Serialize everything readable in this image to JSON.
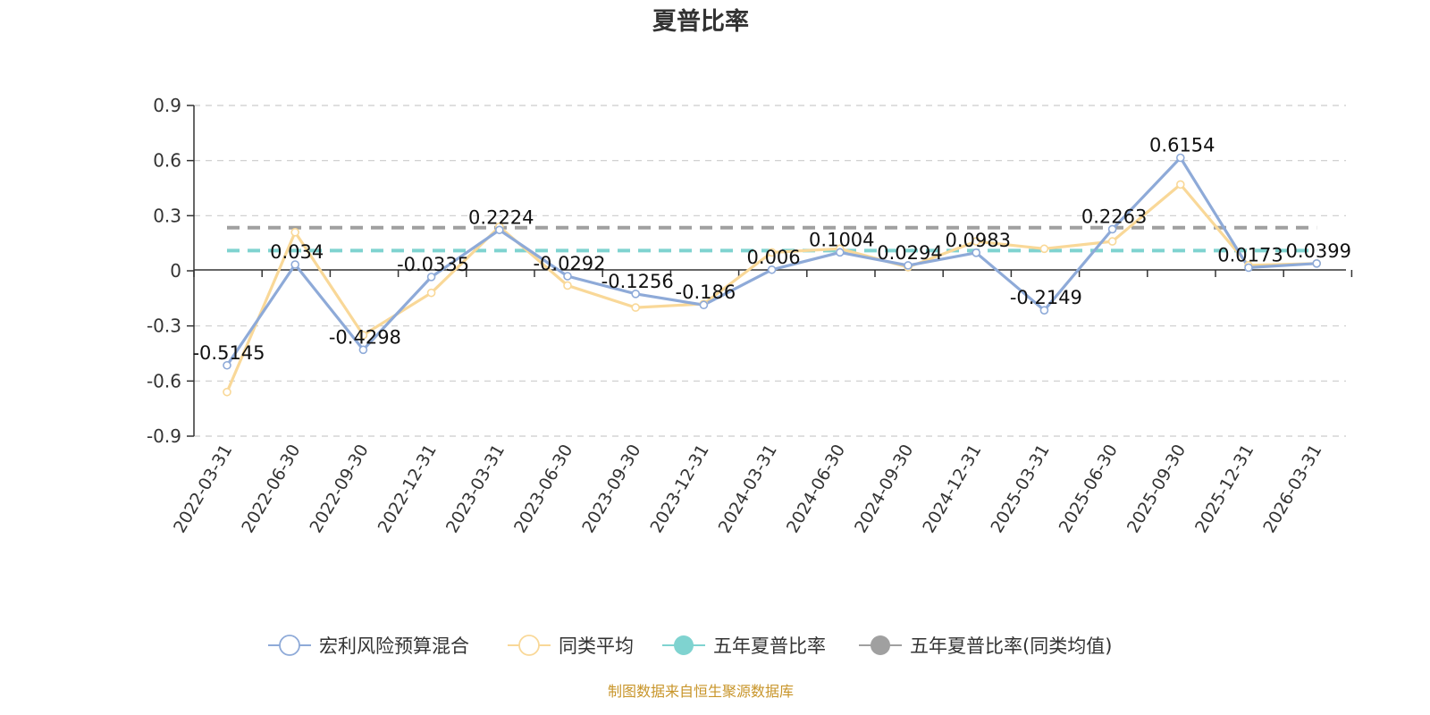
{
  "chart_data": {
    "type": "line",
    "title": "夏普比率",
    "xlabel": "",
    "ylabel": "",
    "ylim": [
      -0.9,
      0.9
    ],
    "yticks": [
      0.9,
      0.6,
      0.3,
      0,
      -0.3,
      -0.6,
      -0.9
    ],
    "grid": true,
    "legend_position": "bottom",
    "categories": [
      "2022-03-31",
      "2022-06-30",
      "2022-09-30",
      "2022-12-31",
      "2023-03-31",
      "2023-06-30",
      "2023-09-30",
      "2023-12-31",
      "2024-03-31",
      "2024-06-30",
      "2024-09-30",
      "2024-12-31",
      "2025-03-31",
      "2025-06-30",
      "2025-09-30",
      "2025-12-31",
      "2026-03-31"
    ],
    "series": [
      {
        "name": "宏利风险预算混合",
        "color": "#8eaad8",
        "values": [
          -0.5145,
          0.034,
          -0.4298,
          -0.0335,
          0.2224,
          -0.0292,
          -0.1256,
          -0.186,
          0.006,
          0.1004,
          0.0294,
          0.0983,
          -0.2149,
          0.2263,
          0.6154,
          0.0173,
          0.0399
        ],
        "labels": [
          "-0.5145",
          "0.034",
          "-0.4298",
          "-0.0335",
          "0.2224",
          "-0.0292",
          "-0.1256",
          "-0.186",
          "0.006",
          "0.1004",
          "0.0294",
          "0.0983",
          "-0.2149",
          "0.2263",
          "0.6154",
          "0.0173",
          "0.0399"
        ]
      },
      {
        "name": "同类平均",
        "color": "#f9d898",
        "values": [
          -0.66,
          0.21,
          -0.35,
          -0.12,
          0.24,
          -0.08,
          -0.2,
          -0.18,
          0.1,
          0.12,
          0.02,
          0.16,
          0.12,
          0.16,
          0.47,
          0.03,
          0.04
        ]
      },
      {
        "name": "五年夏普比率",
        "color": "#7fd3d0",
        "constant": 0.11
      },
      {
        "name": "五年夏普比率(同类均值)",
        "color": "#a0a0a0",
        "constant": 0.235
      }
    ]
  },
  "source_note": "制图数据来自恒生聚源数据库"
}
